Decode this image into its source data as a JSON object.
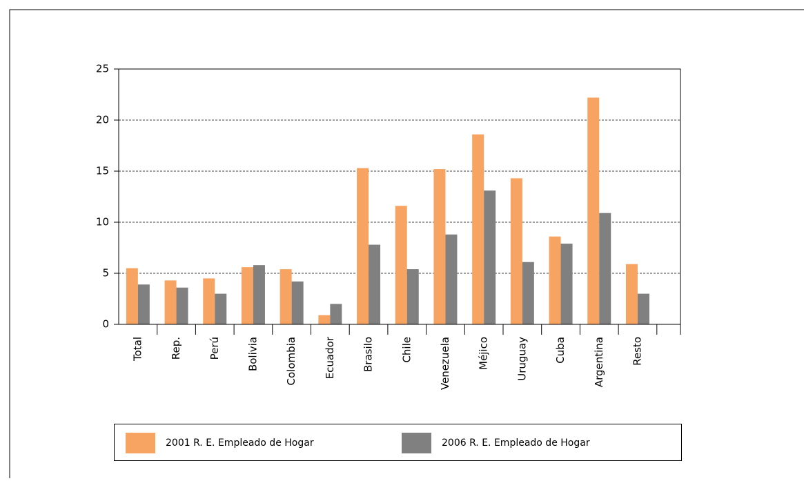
{
  "chart_data": {
    "type": "bar",
    "categories": [
      "Total",
      "Rep.",
      "Perú",
      "Bolivia",
      "Colombia",
      "Ecuador",
      "Brasilo",
      "Chile",
      "Venezuela",
      "Méjico",
      "Uruguay",
      "Cuba",
      "Argentina",
      "Resto"
    ],
    "series": [
      {
        "name": "2001 R. E. Empleado de Hogar",
        "color": "#f7a463",
        "values": [
          5.5,
          4.3,
          4.5,
          5.6,
          5.4,
          0.9,
          15.3,
          11.6,
          15.2,
          18.6,
          14.3,
          8.6,
          22.2,
          5.9
        ]
      },
      {
        "name": "2006 R. E. Empleado de Hogar",
        "color": "#808080",
        "values": [
          3.9,
          3.6,
          3.0,
          5.8,
          4.2,
          2.0,
          7.8,
          5.4,
          8.8,
          13.1,
          6.1,
          7.9,
          10.9,
          3.0
        ]
      }
    ],
    "ylim": [
      0,
      25
    ],
    "yticks": [
      0,
      5,
      10,
      15,
      20,
      25
    ],
    "grid": true
  }
}
